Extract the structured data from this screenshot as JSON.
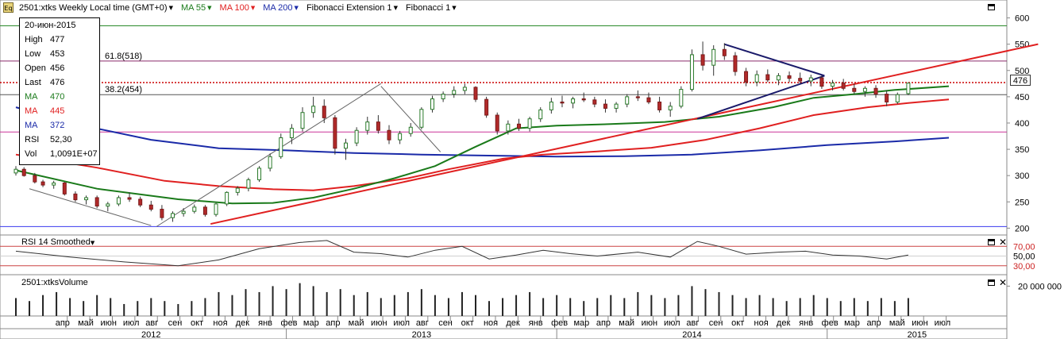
{
  "header": {
    "symbol_icon": "Eq",
    "title": "2501:xtks Weekly Local time (GMT+0)",
    "indicators": [
      {
        "label": "MA 55",
        "color": "#1a7a1a"
      },
      {
        "label": "MA 100",
        "color": "#e02020"
      },
      {
        "label": "MA 200",
        "color": "#1a2aa8"
      },
      {
        "label": "Fibonacci Extension 1",
        "color": "#000000"
      },
      {
        "label": "Fibonacci 1",
        "color": "#000000"
      }
    ]
  },
  "info": {
    "date": "20-июн-2015",
    "rows": [
      {
        "k": "High",
        "v": "477",
        "color": "#000000"
      },
      {
        "k": "Low",
        "v": "453",
        "color": "#000000"
      },
      {
        "k": "Open",
        "v": "456",
        "color": "#000000"
      },
      {
        "k": "Last",
        "v": "476",
        "color": "#000000"
      },
      {
        "k": "MA",
        "v": "470",
        "color": "#1a7a1a"
      },
      {
        "k": "MA",
        "v": "445",
        "color": "#e02020"
      },
      {
        "k": "MA",
        "v": "372",
        "color": "#1a2aa8"
      },
      {
        "k": "RSI",
        "v": "52,30",
        "color": "#000000"
      },
      {
        "k": "Vol",
        "v": "1,0091E+07",
        "color": "#000000"
      }
    ]
  },
  "price_tag": "476",
  "rsi_panel": {
    "label": "RSI 14 Smoothed",
    "ticks": [
      "70,00",
      "50,00",
      "30,00"
    ]
  },
  "volume_panel": {
    "label": "2501:xtksVolume",
    "tick": "20 000 000"
  },
  "chart_data": {
    "type": "candlestick",
    "y_ticks": [
      600,
      550,
      500,
      450,
      400,
      350,
      300,
      250,
      200
    ],
    "ylim": [
      193,
      622
    ],
    "x_months": [
      "апр",
      "май",
      "июн",
      "июл",
      "авг",
      "сен",
      "окт",
      "ноя",
      "дек",
      "янв",
      "фев",
      "мар",
      "апр",
      "май",
      "июн",
      "июл",
      "авг",
      "сен",
      "окт",
      "ноя",
      "дек",
      "янв",
      "фев",
      "мар",
      "апр",
      "май",
      "июн",
      "июл",
      "авг",
      "сен",
      "окт",
      "ноя",
      "дек",
      "янв",
      "фев",
      "мар",
      "апр",
      "май",
      "июн",
      "июл"
    ],
    "x_years": [
      "2012",
      "2013",
      "2014",
      "2015"
    ],
    "fib_labels": [
      {
        "text": "61.8(518)",
        "value": 518
      },
      {
        "text": "38.2(454)",
        "value": 454
      }
    ],
    "horizontal_levels": [
      {
        "value": 585,
        "color": "#2a8a2a"
      },
      {
        "value": 518,
        "color": "#8a2a6a"
      },
      {
        "value": 477,
        "color": "#cc0000",
        "style": "dotted"
      },
      {
        "value": 454,
        "color": "#555555"
      },
      {
        "value": 383,
        "color": "#cc3399"
      },
      {
        "value": 203,
        "color": "#3a3aee"
      }
    ],
    "ma55": [
      [
        2012.0,
        310
      ],
      [
        2012.3,
        275
      ],
      [
        2012.6,
        255
      ],
      [
        2012.8,
        247
      ],
      [
        2012.95,
        248
      ],
      [
        2013.1,
        258
      ],
      [
        2013.25,
        275
      ],
      [
        2013.4,
        295
      ],
      [
        2013.55,
        318
      ],
      [
        2013.7,
        355
      ],
      [
        2013.85,
        390
      ],
      [
        2014.0,
        395
      ],
      [
        2014.2,
        398
      ],
      [
        2014.4,
        402
      ],
      [
        2014.6,
        412
      ],
      [
        2014.8,
        430
      ],
      [
        2014.95,
        448
      ],
      [
        2015.1,
        455
      ],
      [
        2015.25,
        463
      ],
      [
        2015.45,
        470
      ]
    ],
    "ma100": [
      [
        2012.0,
        340
      ],
      [
        2012.3,
        315
      ],
      [
        2012.55,
        290
      ],
      [
        2012.75,
        280
      ],
      [
        2012.95,
        274
      ],
      [
        2013.1,
        272
      ],
      [
        2013.25,
        280
      ],
      [
        2013.45,
        295
      ],
      [
        2013.6,
        312
      ],
      [
        2013.8,
        332
      ],
      [
        2013.95,
        340
      ],
      [
        2014.15,
        346
      ],
      [
        2014.35,
        353
      ],
      [
        2014.55,
        368
      ],
      [
        2014.75,
        390
      ],
      [
        2014.95,
        415
      ],
      [
        2015.15,
        430
      ],
      [
        2015.3,
        438
      ],
      [
        2015.45,
        445
      ]
    ],
    "ma200": [
      [
        2012.0,
        430
      ],
      [
        2012.25,
        395
      ],
      [
        2012.5,
        368
      ],
      [
        2012.75,
        352
      ],
      [
        2013.0,
        348
      ],
      [
        2013.25,
        343
      ],
      [
        2013.5,
        340
      ],
      [
        2013.75,
        338
      ],
      [
        2014.0,
        336
      ],
      [
        2014.25,
        337
      ],
      [
        2014.5,
        340
      ],
      [
        2014.75,
        348
      ],
      [
        2015.0,
        358
      ],
      [
        2015.25,
        365
      ],
      [
        2015.45,
        372
      ]
    ],
    "trendlines": [
      {
        "from": [
          2012.72,
          208
        ],
        "to": [
          2015.78,
          550
        ],
        "color": "#e02020"
      },
      {
        "from": [
          2012.52,
          203
        ],
        "to": [
          2013.35,
          475
        ],
        "color": "#666666"
      },
      {
        "from": [
          2013.35,
          470
        ],
        "to": [
          2013.57,
          345
        ],
        "color": "#666666"
      },
      {
        "from": [
          2014.62,
          550
        ],
        "to": [
          2014.99,
          490
        ],
        "color": "#1a1a6a"
      },
      {
        "from": [
          2014.52,
          408
        ],
        "to": [
          2014.99,
          490
        ],
        "color": "#1a1a6a"
      },
      {
        "from": [
          2012.05,
          275
        ],
        "to": [
          2012.5,
          205
        ],
        "color": "#666666"
      }
    ],
    "candles": [
      [
        2012.0,
        305,
        318,
        300,
        312
      ],
      [
        2012.03,
        312,
        316,
        298,
        300
      ],
      [
        2012.07,
        300,
        305,
        285,
        288
      ],
      [
        2012.1,
        288,
        292,
        278,
        282
      ],
      [
        2012.14,
        282,
        290,
        275,
        286
      ],
      [
        2012.18,
        286,
        288,
        262,
        265
      ],
      [
        2012.22,
        265,
        270,
        250,
        254
      ],
      [
        2012.26,
        254,
        262,
        245,
        258
      ],
      [
        2012.3,
        258,
        262,
        238,
        242
      ],
      [
        2012.34,
        242,
        250,
        232,
        246
      ],
      [
        2012.38,
        246,
        262,
        242,
        258
      ],
      [
        2012.42,
        258,
        268,
        250,
        255
      ],
      [
        2012.46,
        255,
        260,
        240,
        244
      ],
      [
        2012.5,
        244,
        252,
        232,
        236
      ],
      [
        2012.54,
        236,
        244,
        215,
        220
      ],
      [
        2012.58,
        220,
        232,
        212,
        228
      ],
      [
        2012.62,
        228,
        238,
        222,
        232
      ],
      [
        2012.66,
        232,
        245,
        228,
        240
      ],
      [
        2012.7,
        240,
        244,
        222,
        226
      ],
      [
        2012.74,
        226,
        248,
        222,
        246
      ],
      [
        2012.78,
        246,
        270,
        242,
        268
      ],
      [
        2012.82,
        268,
        280,
        262,
        276
      ],
      [
        2012.86,
        276,
        296,
        270,
        292
      ],
      [
        2012.9,
        292,
        318,
        288,
        314
      ],
      [
        2012.94,
        314,
        342,
        308,
        336
      ],
      [
        2012.98,
        336,
        380,
        332,
        372
      ],
      [
        2013.02,
        372,
        398,
        360,
        390
      ],
      [
        2013.06,
        390,
        430,
        384,
        420
      ],
      [
        2013.1,
        420,
        450,
        410,
        432
      ],
      [
        2013.14,
        432,
        445,
        400,
        410
      ],
      [
        2013.18,
        410,
        415,
        340,
        352
      ],
      [
        2013.22,
        352,
        370,
        330,
        362
      ],
      [
        2013.26,
        362,
        392,
        356,
        386
      ],
      [
        2013.3,
        386,
        412,
        378,
        402
      ],
      [
        2013.34,
        402,
        415,
        380,
        386
      ],
      [
        2013.38,
        386,
        396,
        360,
        368
      ],
      [
        2013.42,
        368,
        385,
        360,
        380
      ],
      [
        2013.46,
        380,
        400,
        374,
        392
      ],
      [
        2013.5,
        392,
        430,
        388,
        426
      ],
      [
        2013.54,
        426,
        452,
        420,
        446
      ],
      [
        2013.58,
        446,
        460,
        440,
        455
      ],
      [
        2013.62,
        455,
        470,
        448,
        462
      ],
      [
        2013.66,
        462,
        475,
        455,
        468
      ],
      [
        2013.7,
        468,
        470,
        440,
        445
      ],
      [
        2013.74,
        445,
        450,
        410,
        415
      ],
      [
        2013.78,
        415,
        420,
        378,
        385
      ],
      [
        2013.82,
        385,
        405,
        378,
        398
      ],
      [
        2013.86,
        398,
        408,
        385,
        390
      ],
      [
        2013.9,
        390,
        412,
        384,
        408
      ],
      [
        2013.94,
        408,
        430,
        402,
        425
      ],
      [
        2013.98,
        425,
        448,
        418,
        440
      ],
      [
        2014.02,
        440,
        452,
        430,
        438
      ],
      [
        2014.06,
        438,
        450,
        428,
        446
      ],
      [
        2014.1,
        446,
        458,
        440,
        444
      ],
      [
        2014.14,
        444,
        450,
        430,
        436
      ],
      [
        2014.18,
        436,
        445,
        420,
        428
      ],
      [
        2014.22,
        428,
        440,
        420,
        436
      ],
      [
        2014.26,
        436,
        455,
        430,
        450
      ],
      [
        2014.3,
        450,
        462,
        442,
        448
      ],
      [
        2014.34,
        448,
        458,
        436,
        440
      ],
      [
        2014.38,
        440,
        450,
        420,
        425
      ],
      [
        2014.42,
        425,
        440,
        412,
        432
      ],
      [
        2014.46,
        432,
        470,
        428,
        464
      ],
      [
        2014.5,
        464,
        540,
        460,
        530
      ],
      [
        2014.54,
        530,
        555,
        500,
        510
      ],
      [
        2014.58,
        510,
        548,
        490,
        540
      ],
      [
        2014.62,
        540,
        552,
        520,
        528
      ],
      [
        2014.66,
        528,
        535,
        490,
        498
      ],
      [
        2014.7,
        498,
        505,
        470,
        478
      ],
      [
        2014.74,
        478,
        500,
        470,
        492
      ],
      [
        2014.78,
        492,
        502,
        478,
        482
      ],
      [
        2014.82,
        482,
        495,
        472,
        490
      ],
      [
        2014.86,
        490,
        498,
        478,
        485
      ],
      [
        2014.9,
        485,
        496,
        476,
        480
      ],
      [
        2014.94,
        480,
        492,
        470,
        486
      ],
      [
        2014.98,
        486,
        490,
        465,
        470
      ],
      [
        2015.02,
        470,
        482,
        462,
        476
      ],
      [
        2015.06,
        476,
        484,
        462,
        466
      ],
      [
        2015.1,
        466,
        475,
        455,
        460
      ],
      [
        2015.14,
        460,
        470,
        450,
        466
      ],
      [
        2015.18,
        466,
        472,
        448,
        455
      ],
      [
        2015.22,
        455,
        462,
        432,
        440
      ],
      [
        2015.26,
        440,
        458,
        436,
        454
      ],
      [
        2015.3,
        456,
        477,
        453,
        476
      ]
    ],
    "rsi": [
      [
        2012.0,
        60
      ],
      [
        2012.2,
        48
      ],
      [
        2012.4,
        38
      ],
      [
        2012.6,
        30
      ],
      [
        2012.75,
        42
      ],
      [
        2012.9,
        65
      ],
      [
        2013.05,
        78
      ],
      [
        2013.15,
        82
      ],
      [
        2013.25,
        58
      ],
      [
        2013.35,
        55
      ],
      [
        2013.45,
        48
      ],
      [
        2013.55,
        62
      ],
      [
        2013.65,
        70
      ],
      [
        2013.75,
        44
      ],
      [
        2013.85,
        52
      ],
      [
        2013.95,
        62
      ],
      [
        2014.05,
        55
      ],
      [
        2014.15,
        50
      ],
      [
        2014.3,
        58
      ],
      [
        2014.42,
        48
      ],
      [
        2014.52,
        80
      ],
      [
        2014.6,
        70
      ],
      [
        2014.7,
        54
      ],
      [
        2014.82,
        58
      ],
      [
        2014.92,
        60
      ],
      [
        2015.02,
        52
      ],
      [
        2015.12,
        50
      ],
      [
        2015.22,
        44
      ],
      [
        2015.3,
        52
      ]
    ],
    "volume": [
      [
        2012.0,
        0.6
      ],
      [
        2012.05,
        0.5
      ],
      [
        2012.1,
        0.7
      ],
      [
        2012.15,
        0.8
      ],
      [
        2012.2,
        0.6
      ],
      [
        2012.25,
        0.5
      ],
      [
        2012.3,
        0.7
      ],
      [
        2012.35,
        0.6
      ],
      [
        2012.4,
        0.4
      ],
      [
        2012.45,
        0.5
      ],
      [
        2012.5,
        0.6
      ],
      [
        2012.55,
        0.5
      ],
      [
        2012.6,
        0.4
      ],
      [
        2012.65,
        0.5
      ],
      [
        2012.7,
        0.6
      ],
      [
        2012.75,
        0.8
      ],
      [
        2012.8,
        0.7
      ],
      [
        2012.85,
        0.9
      ],
      [
        2012.9,
        0.8
      ],
      [
        2012.95,
        1.0
      ],
      [
        2013.0,
        0.9
      ],
      [
        2013.05,
        1.1
      ],
      [
        2013.1,
        1.0
      ],
      [
        2013.15,
        0.8
      ],
      [
        2013.2,
        0.9
      ],
      [
        2013.25,
        0.7
      ],
      [
        2013.3,
        0.8
      ],
      [
        2013.35,
        0.6
      ],
      [
        2013.4,
        0.7
      ],
      [
        2013.45,
        0.8
      ],
      [
        2013.5,
        0.9
      ],
      [
        2013.55,
        0.7
      ],
      [
        2013.6,
        0.6
      ],
      [
        2013.65,
        0.8
      ],
      [
        2013.7,
        0.7
      ],
      [
        2013.75,
        0.5
      ],
      [
        2013.8,
        0.6
      ],
      [
        2013.85,
        0.7
      ],
      [
        2013.9,
        0.8
      ],
      [
        2013.95,
        0.6
      ],
      [
        2014.0,
        0.7
      ],
      [
        2014.05,
        0.6
      ],
      [
        2014.1,
        0.5
      ],
      [
        2014.15,
        0.6
      ],
      [
        2014.2,
        0.7
      ],
      [
        2014.25,
        0.6
      ],
      [
        2014.3,
        0.8
      ],
      [
        2014.35,
        0.7
      ],
      [
        2014.4,
        0.6
      ],
      [
        2014.45,
        0.7
      ],
      [
        2014.5,
        1.0
      ],
      [
        2014.55,
        0.9
      ],
      [
        2014.6,
        0.8
      ],
      [
        2014.65,
        0.7
      ],
      [
        2014.7,
        0.6
      ],
      [
        2014.75,
        0.7
      ],
      [
        2014.8,
        0.6
      ],
      [
        2014.85,
        0.5
      ],
      [
        2014.9,
        0.6
      ],
      [
        2014.95,
        0.7
      ],
      [
        2015.0,
        0.6
      ],
      [
        2015.05,
        0.5
      ],
      [
        2015.1,
        0.6
      ],
      [
        2015.15,
        0.5
      ],
      [
        2015.2,
        0.6
      ],
      [
        2015.25,
        0.5
      ],
      [
        2015.3,
        0.6
      ]
    ]
  }
}
